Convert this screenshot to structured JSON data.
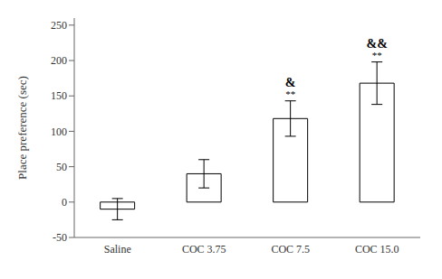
{
  "chart_data": {
    "type": "bar",
    "categories": [
      "Saline",
      "COC 3.75",
      "COC 7.5",
      "COC 15.0"
    ],
    "values": [
      -10,
      40,
      118,
      168
    ],
    "errors": [
      15,
      20,
      25,
      30
    ],
    "color": "#ffffff",
    "ylabel": "Place preference (sec)",
    "ylim": [
      -50,
      260
    ],
    "yticks": [
      -50,
      0,
      50,
      100,
      150,
      200,
      250
    ],
    "annotations": [
      {
        "category": "COC 7.5",
        "texts": [
          "**",
          "&"
        ]
      },
      {
        "category": "COC 15.0",
        "texts": [
          "**",
          "&&"
        ]
      }
    ],
    "grid": false
  }
}
